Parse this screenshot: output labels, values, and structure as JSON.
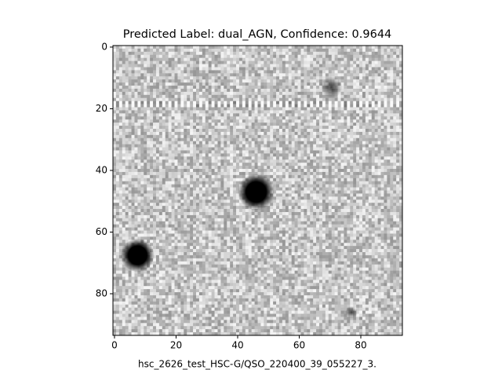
{
  "chart_data": {
    "type": "image",
    "title": "Predicted Label: dual_AGN, Confidence: 0.9644",
    "xlabel": "hsc_2626_test_HSC-G/QSO_220400_39_055227_3.",
    "xlim": [
      -0.5,
      93.5
    ],
    "ylim": [
      93.5,
      -0.5
    ],
    "xticks": [
      0,
      20,
      40,
      60,
      80
    ],
    "yticks": [
      0,
      20,
      40,
      60,
      80
    ],
    "colormap": "gray_r"
  }
}
